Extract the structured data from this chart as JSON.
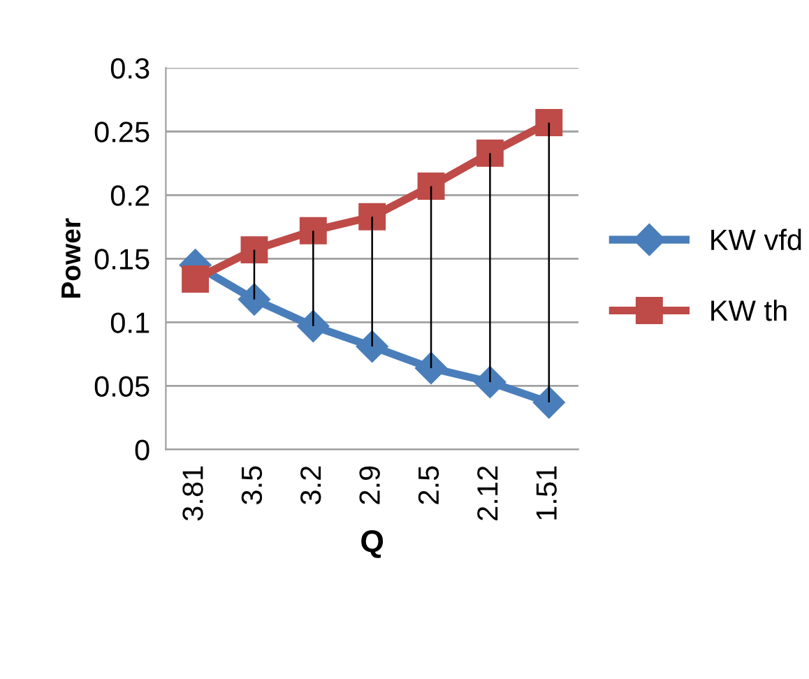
{
  "chart_data": {
    "type": "line",
    "xlabel": "Q",
    "ylabel": "Power",
    "categories": [
      "3.81",
      "3.5",
      "3.2",
      "2.9",
      "2.5",
      "2.12",
      "1.51"
    ],
    "series": [
      {
        "name": "KW vfd",
        "color": "#4a7ebb",
        "marker": "diamond",
        "values": [
          0.145,
          0.118,
          0.097,
          0.081,
          0.064,
          0.053,
          0.037
        ],
        "errors": [
          null,
          [
            0.118,
            0.157
          ],
          [
            0.097,
            0.172
          ],
          [
            0.081,
            0.183
          ],
          [
            0.064,
            0.207
          ],
          [
            0.053,
            0.233
          ],
          [
            0.037,
            0.257
          ]
        ]
      },
      {
        "name": "KW th",
        "color": "#be4b48",
        "marker": "square",
        "values": [
          0.134,
          0.157,
          0.172,
          0.183,
          0.207,
          0.233,
          0.257
        ]
      }
    ],
    "ylim": [
      0,
      0.3
    ],
    "yticks": [
      {
        "value": 0,
        "label": "0"
      },
      0.05,
      0.1,
      0.15,
      0.2,
      0.25,
      0.3
    ],
    "grid": "y",
    "legend": "right"
  }
}
